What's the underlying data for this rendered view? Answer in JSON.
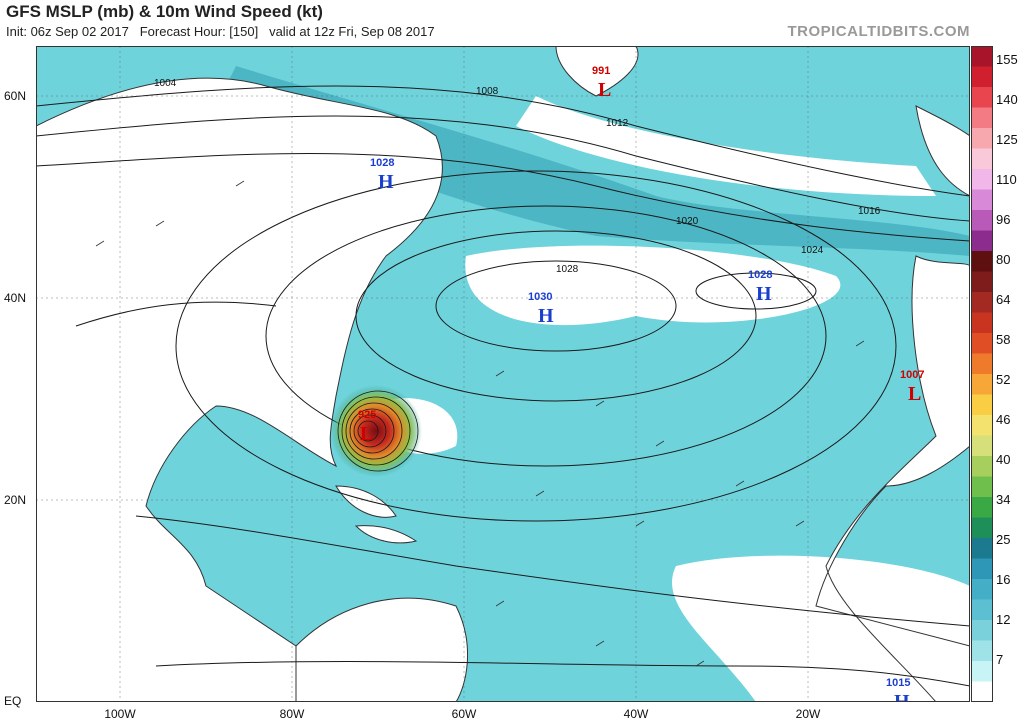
{
  "header": {
    "title": "GFS MSLP (mb) & 10m Wind Speed (kt)",
    "init": "Init: 06z Sep 02 2017",
    "forecast_hour": "Forecast Hour: [150]",
    "valid": "valid at 12z Fri, Sep 08 2017",
    "brand": "TROPICALTIDBITS.COM"
  },
  "axes": {
    "lat_labels": [
      "60N",
      "40N",
      "20N",
      "EQ"
    ],
    "lon_labels": [
      "100W",
      "80W",
      "60W",
      "40W",
      "20W"
    ]
  },
  "pressure_centers": [
    {
      "type": "L",
      "value": "925",
      "color": "#d00000"
    },
    {
      "type": "H",
      "value": "1028",
      "color": "#1a3fcf"
    },
    {
      "type": "H",
      "value": "1030",
      "color": "#1a3fcf"
    },
    {
      "type": "H",
      "value": "1028",
      "color": "#1a3fcf"
    },
    {
      "type": "L",
      "value": "991",
      "color": "#d00000"
    },
    {
      "type": "L",
      "value": "1007",
      "color": "#d00000"
    },
    {
      "type": "H",
      "value": "1015",
      "color": "#1a3fcf"
    }
  ],
  "isobar_labels": [
    "1004",
    "1008",
    "1012",
    "1016",
    "1020",
    "1024",
    "1028"
  ],
  "colorbar": {
    "ticks": [
      "155",
      "140",
      "125",
      "110",
      "96",
      "80",
      "64",
      "58",
      "52",
      "46",
      "40",
      "34",
      "25",
      "16",
      "12",
      "7"
    ],
    "colors": [
      "#a8152a",
      "#d0202f",
      "#e8454f",
      "#f37b84",
      "#f7a7ae",
      "#f9c8d9",
      "#f0b7e8",
      "#d88ad8",
      "#b95ab8",
      "#8d2c8f",
      "#5e1010",
      "#7e1c1c",
      "#a32a22",
      "#c8341f",
      "#e04e25",
      "#ef7a2c",
      "#f7a737",
      "#f9ce45",
      "#f3e26e",
      "#d6e07a",
      "#a7cf5e",
      "#6fbf4c",
      "#3aa845",
      "#1f8f5a",
      "#1b7a90",
      "#2e96b6",
      "#45aec7",
      "#5cc0d2",
      "#7ad1dc",
      "#9fe3e9",
      "#c8f4f6",
      "#ffffff"
    ],
    "accent_storm": "#3c9a2f"
  }
}
